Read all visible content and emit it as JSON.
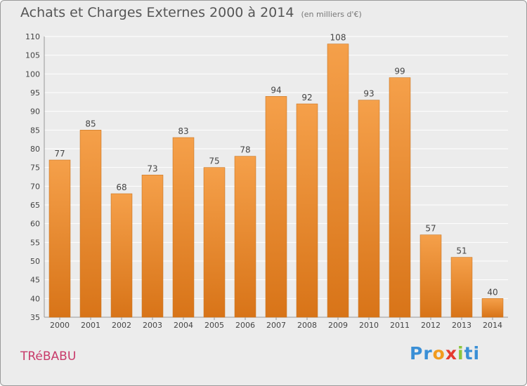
{
  "header": {
    "title": "Achats et Charges Externes 2000 à 2014",
    "subtitle": "(en milliers d'€)"
  },
  "footer": {
    "commune": "TRéBABU",
    "logo_letters": [
      "P",
      "r",
      "o",
      "x",
      "i",
      "ti"
    ]
  },
  "colors": {
    "bar_top": "#f5a04a",
    "bar_bottom": "#d87418",
    "bar_stroke": "#c9741f",
    "grid": "#ffffff",
    "axis_text": "#444444"
  },
  "chart_data": {
    "type": "bar",
    "title": "Achats et Charges Externes 2000 à 2014",
    "subtitle": "(en milliers d'€)",
    "xlabel": "",
    "ylabel": "",
    "categories": [
      "2000",
      "2001",
      "2002",
      "2003",
      "2004",
      "2005",
      "2006",
      "2007",
      "2008",
      "2009",
      "2010",
      "2011",
      "2012",
      "2013",
      "2014"
    ],
    "values": [
      77,
      85,
      68,
      73,
      83,
      75,
      78,
      94,
      92,
      108,
      93,
      99,
      57,
      51,
      40
    ],
    "ylim": [
      35,
      110
    ],
    "yticks": [
      35,
      40,
      45,
      50,
      55,
      60,
      65,
      70,
      75,
      80,
      85,
      90,
      95,
      100,
      105,
      110
    ],
    "grid": true,
    "data_labels": true
  }
}
